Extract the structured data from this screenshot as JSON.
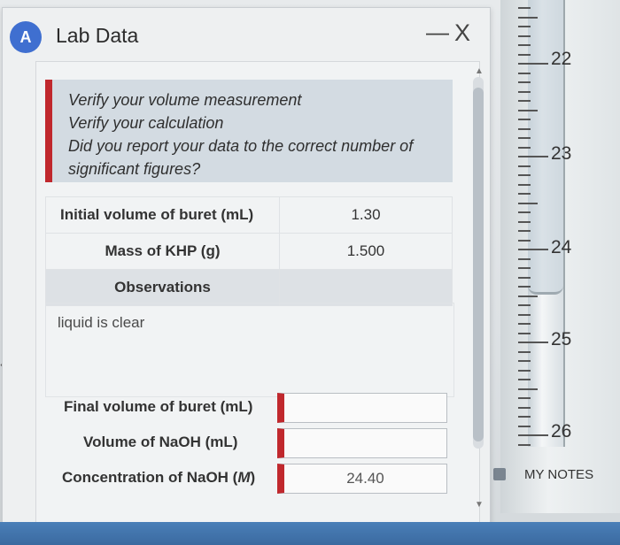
{
  "window": {
    "title": "Lab Data",
    "minimize": "—",
    "close": "X"
  },
  "notice": {
    "lines": [
      "Verify your volume measurement",
      "Verify your calculation",
      "Did you report your data to the correct number of",
      "significant figures?"
    ]
  },
  "table": {
    "rows": [
      {
        "label": "Initial volume of buret (mL)",
        "value": "1.30"
      },
      {
        "label": "Mass of KHP (g)",
        "value": "1.500"
      }
    ],
    "observations_label": "Observations",
    "observations_text": "liquid is clear"
  },
  "form": {
    "final_volume_label": "Final volume of buret (mL)",
    "final_volume_value": "",
    "naoh_volume_label": "Volume of NaOH (mL)",
    "naoh_volume_value": "",
    "concentration_label": "Concentration of NaOH (",
    "concentration_unit": "M",
    "concentration_suffix": ")",
    "concentration_value": "24.40"
  },
  "buret": {
    "marks": [
      "22",
      "23",
      "24",
      "25",
      "26"
    ]
  },
  "notes": {
    "label": "MY NOTES"
  },
  "colors": {
    "accent_red": "#c0282d",
    "icon_blue": "#3f6fd0"
  }
}
